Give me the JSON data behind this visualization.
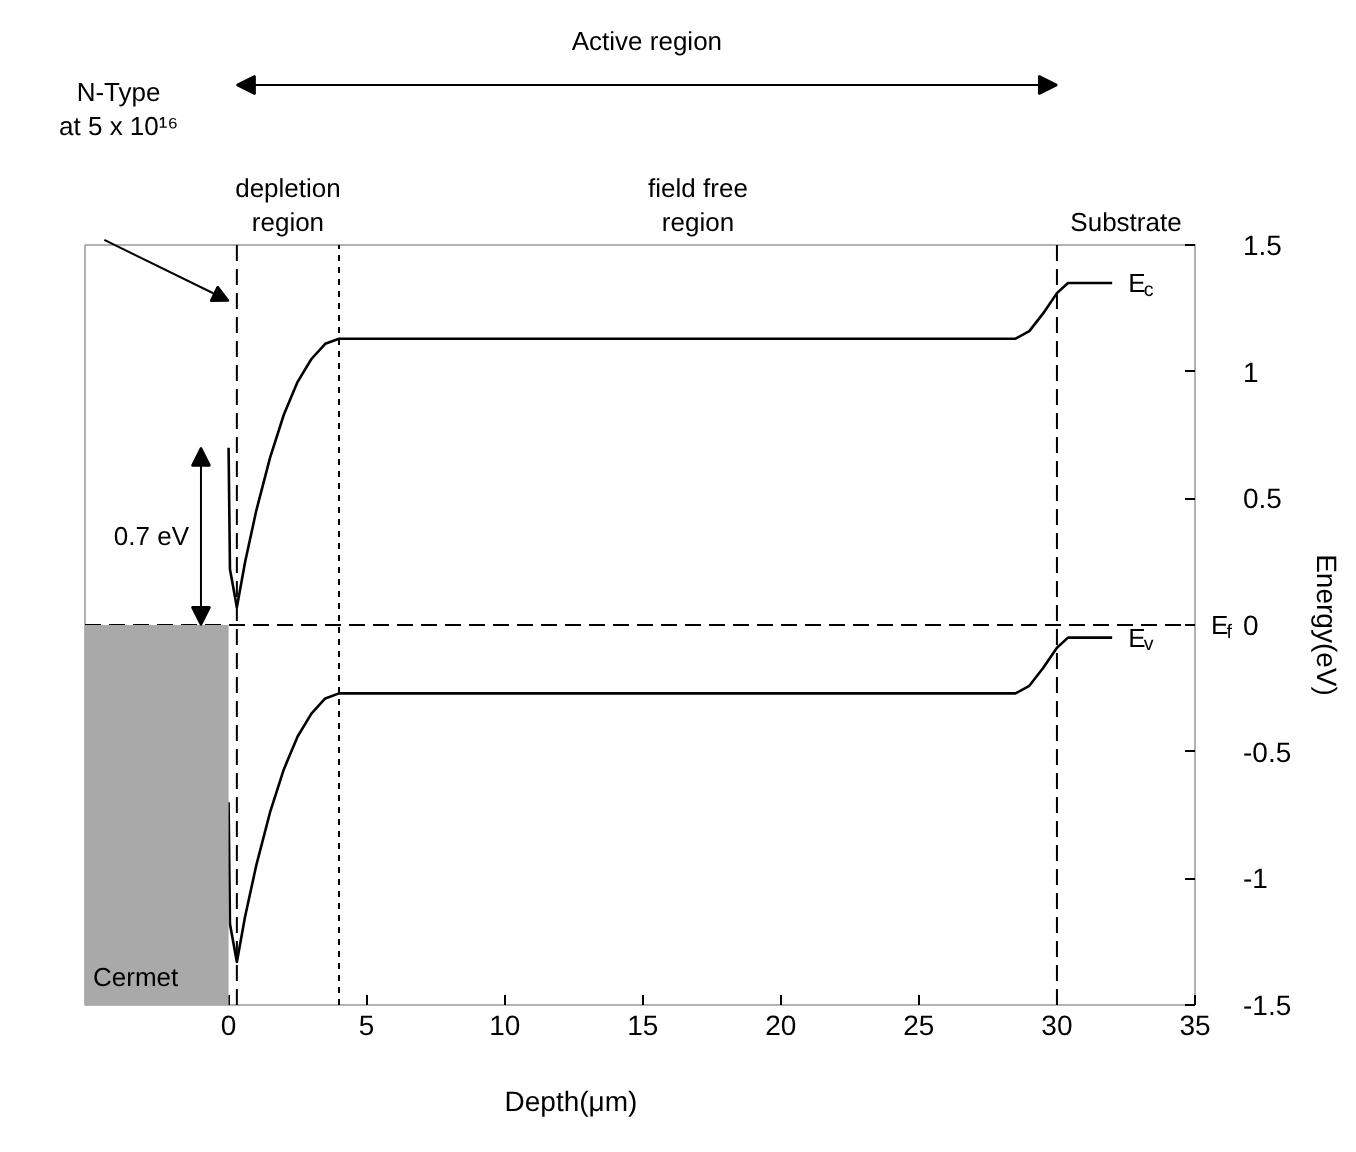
{
  "chart_data": {
    "type": "line",
    "xlabel": "Depth(μm)",
    "ylabel": "Energy(eV)",
    "xlim": [
      -5.2,
      35
    ],
    "xticks": [
      0,
      5,
      10,
      15,
      20,
      25,
      30,
      35
    ],
    "ylim": [
      -1.5,
      1.5
    ],
    "yticks": [
      -1.5,
      -1,
      -0.5,
      0,
      0.5,
      1,
      1.5
    ],
    "grid": false,
    "legend": "right",
    "marker": "none",
    "line_style": "solid",
    "series": [
      {
        "name": "E$_{c}$",
        "color": "#000000",
        "x": [
          0,
          0.05,
          0.3,
          0.6,
          1,
          1.5,
          2,
          2.5,
          3,
          3.5,
          4,
          28.5,
          29,
          29.5,
          30,
          30.4,
          32
        ],
        "values": [
          0.7,
          0.22,
          0.07,
          0.25,
          0.45,
          0.66,
          0.83,
          0.96,
          1.05,
          1.11,
          1.13,
          1.13,
          1.16,
          1.23,
          1.31,
          1.35,
          1.35
        ]
      },
      {
        "name": "E$_{v}$",
        "color": "#000000",
        "x": [
          0,
          0.05,
          0.3,
          0.6,
          1,
          1.5,
          2,
          2.5,
          3,
          3.5,
          4,
          28.5,
          29,
          29.5,
          30,
          30.4,
          32
        ],
        "values": [
          -0.7,
          -1.18,
          -1.33,
          -1.15,
          -0.95,
          -0.74,
          -0.57,
          -0.44,
          -0.35,
          -0.29,
          -0.27,
          -0.27,
          -0.24,
          -0.17,
          -0.09,
          -0.05,
          -0.05
        ]
      }
    ],
    "ref_lines": [
      {
        "axis": "x",
        "value": 0.3,
        "label": null,
        "color": "#000000",
        "line_style": "dashed"
      },
      {
        "axis": "x",
        "value": 4,
        "label": null,
        "color": "#000000",
        "line_style": "dotted"
      },
      {
        "axis": "x",
        "value": 30,
        "label": null,
        "color": "#000000",
        "line_style": "dashed"
      },
      {
        "axis": "y",
        "value": 0,
        "label": "E$_{f}$",
        "color": "#000000",
        "line_style": "dashed"
      }
    ],
    "bands": [
      {
        "axis": "x",
        "from": -5.2,
        "to": 0,
        "label": "Cermet",
        "color": "#a9a9a9"
      }
    ],
    "annotations": [
      "Active region",
      "depletion\nregion",
      "field free\nregion",
      "Substrate",
      "N-Type\nat 5 x 10¹⁶",
      "0.7 eV"
    ]
  }
}
